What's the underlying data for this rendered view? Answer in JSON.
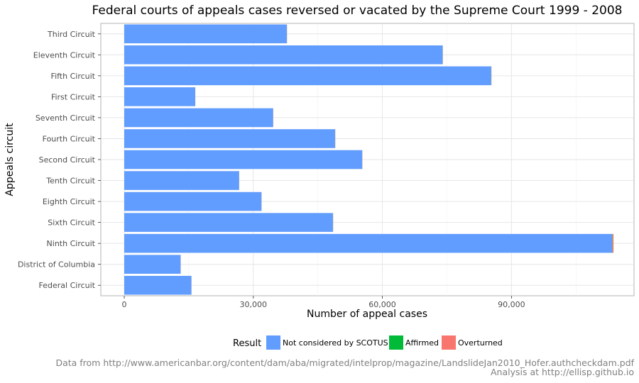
{
  "chart_data": {
    "type": "bar",
    "orientation": "horizontal",
    "stacked": true,
    "title": "Federal courts of appeals cases reversed or vacated by the Supreme Court 1999 - 2008",
    "xlabel": "Number of appeal cases",
    "ylabel": "Appeals circuit",
    "xlim": [
      0,
      118000
    ],
    "x_ticks": [
      0,
      30000,
      60000,
      90000
    ],
    "x_tick_labels": [
      "0",
      "30,000",
      "60,000",
      "90,000"
    ],
    "grid": true,
    "legend_position": "bottom",
    "categories": [
      "Third Circuit",
      "Eleventh Circuit",
      "Fifth Circuit",
      "First Circuit",
      "Seventh Circuit",
      "Fourth Circuit",
      "Second Circuit",
      "Tenth Circuit",
      "Eighth Circuit",
      "Sixth Circuit",
      "Ninth Circuit",
      "District of Columbia",
      "Federal Circuit"
    ],
    "legend_title": "Result",
    "series": [
      {
        "name": "Not considered by SCOTUS",
        "color": "#619CFF",
        "values": [
          37800,
          74000,
          85300,
          16500,
          34600,
          49000,
          55300,
          26700,
          31900,
          48500,
          113400,
          13100,
          15600
        ]
      },
      {
        "name": "Affirmed",
        "color": "#00BA38",
        "values": [
          10,
          20,
          20,
          5,
          10,
          20,
          20,
          10,
          10,
          20,
          80,
          10,
          10
        ]
      },
      {
        "name": "Overturned",
        "color": "#F8766D",
        "values": [
          30,
          40,
          40,
          10,
          30,
          40,
          40,
          20,
          30,
          40,
          250,
          20,
          20
        ]
      }
    ],
    "caption_lines": [
      "Data from http://www.americanbar.org/content/dam/aba/migrated/intelprop/magazine/LandslideJan2010_Hofer.authcheckdam.pdf",
      "Analysis at http://ellisp.github.io"
    ]
  }
}
